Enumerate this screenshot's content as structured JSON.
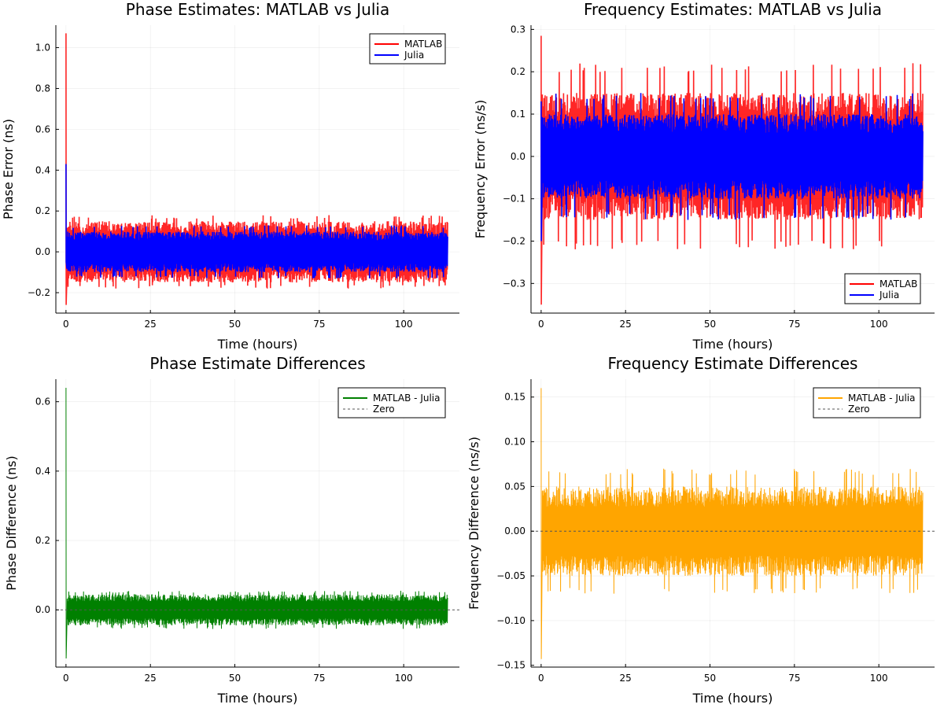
{
  "chart_data": [
    {
      "type": "line",
      "title": "Phase Estimates: MATLAB vs Julia",
      "xlabel": "Time (hours)",
      "ylabel": "Phase Error (ns)",
      "xlim": [
        -3,
        116.5
      ],
      "ylim": [
        -0.3,
        1.11
      ],
      "xticks": [
        0,
        25,
        50,
        75,
        100
      ],
      "yticks": [
        -0.2,
        0.0,
        0.2,
        0.4,
        0.6,
        0.8,
        1.0
      ],
      "ytick_labels": [
        "−0.2",
        "0.0",
        "0.2",
        "0.4",
        "0.6",
        "0.8",
        "1.0"
      ],
      "grid": true,
      "legend_position": "top-right",
      "x_end": 113,
      "series": [
        {
          "name": "MATLAB",
          "color": "#ff0000",
          "initial_spike": [
            1.07,
            -0.26
          ],
          "typical_amplitude": 0.15,
          "peak_amplitude": 0.18,
          "noise_bias": 0.0
        },
        {
          "name": "Julia",
          "color": "#0000ff",
          "initial_spike": [
            0.43,
            -0.05
          ],
          "typical_amplitude": 0.1,
          "peak_amplitude": 0.13,
          "noise_bias": 0.0
        }
      ]
    },
    {
      "type": "line",
      "title": "Frequency Estimates: MATLAB vs Julia",
      "xlabel": "Time (hours)",
      "ylabel": "Frequency Error (ns/s)",
      "xlim": [
        -3,
        116.5
      ],
      "ylim": [
        -0.37,
        0.31
      ],
      "xticks": [
        0,
        25,
        50,
        75,
        100
      ],
      "yticks": [
        -0.3,
        -0.2,
        -0.1,
        0.0,
        0.1,
        0.2,
        0.3
      ],
      "ytick_labels": [
        "−0.3",
        "−0.2",
        "−0.1",
        "0.0",
        "0.1",
        "0.2",
        "0.3"
      ],
      "grid": true,
      "legend_position": "bottom-right",
      "x_end": 113,
      "series": [
        {
          "name": "MATLAB",
          "color": "#ff0000",
          "initial_spike": [
            0.285,
            -0.35
          ],
          "typical_amplitude": 0.15,
          "peak_amplitude": 0.22,
          "noise_bias": 0.0
        },
        {
          "name": "Julia",
          "color": "#0000ff",
          "initial_spike": [
            0.13,
            -0.2
          ],
          "typical_amplitude": 0.1,
          "peak_amplitude": 0.15,
          "noise_bias": 0.0
        }
      ]
    },
    {
      "type": "line",
      "title": "Phase Estimate Differences",
      "xlabel": "Time (hours)",
      "ylabel": "Phase Difference (ns)",
      "xlim": [
        -3,
        116.5
      ],
      "ylim": [
        -0.165,
        0.665
      ],
      "xticks": [
        0,
        25,
        50,
        75,
        100
      ],
      "yticks": [
        0.0,
        0.2,
        0.4,
        0.6
      ],
      "ytick_labels": [
        "0.0",
        "0.2",
        "0.4",
        "0.6"
      ],
      "grid": true,
      "legend_position": "top-right",
      "x_end": 113,
      "series": [
        {
          "name": "MATLAB - Julia",
          "color": "#008000",
          "initial_spike": [
            0.64,
            -0.14
          ],
          "typical_amplitude": 0.045,
          "peak_amplitude": 0.055,
          "noise_bias": 0.0
        },
        {
          "name": "Zero",
          "color": "#555555",
          "dashed": true,
          "value": 0
        }
      ]
    },
    {
      "type": "line",
      "title": "Frequency Estimate Differences",
      "xlabel": "Time (hours)",
      "ylabel": "Frequency Difference (ns/s)",
      "xlim": [
        -3,
        116.5
      ],
      "ylim": [
        -0.152,
        0.17
      ],
      "xticks": [
        0,
        25,
        50,
        75,
        100
      ],
      "yticks": [
        -0.15,
        -0.1,
        -0.05,
        0.0,
        0.05,
        0.1,
        0.15
      ],
      "ytick_labels": [
        "−0.15",
        "−0.10",
        "−0.05",
        "0.00",
        "0.05",
        "0.10",
        "0.15"
      ],
      "grid": true,
      "legend_position": "top-right",
      "x_end": 113,
      "series": [
        {
          "name": "MATLAB - Julia",
          "color": "#ffa500",
          "initial_spike": [
            0.16,
            -0.143
          ],
          "typical_amplitude": 0.05,
          "peak_amplitude": 0.07,
          "noise_bias": 0.0
        },
        {
          "name": "Zero",
          "color": "#555555",
          "dashed": true,
          "value": 0
        }
      ]
    }
  ]
}
